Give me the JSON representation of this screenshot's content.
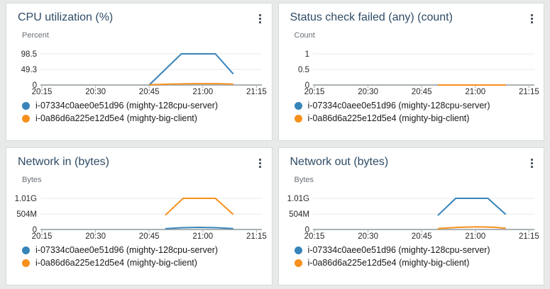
{
  "colors": {
    "blue": "#3784ba",
    "orange": "#f7901d",
    "title": "#2e4b66",
    "axis": "#aab2b5",
    "grid": "#e7eaea",
    "tick_text": "#25282a",
    "unit_text": "#687078",
    "legend_text": "#17191c",
    "page_bg": "#e8eaea",
    "panel_bg": "#ffffff",
    "panel_border": "#d5dada",
    "kebab_dot": "#545b64"
  },
  "menu": {
    "icon": "kebab-vertical"
  },
  "chart_data": [
    {
      "type": "line",
      "title": "CPU utilization (%)",
      "ylabel": "Percent",
      "x_tick_labels": [
        "20:15",
        "20:30",
        "20:45",
        "21:00",
        "21:15"
      ],
      "x_tick_minutes": [
        0,
        15,
        30,
        45,
        60
      ],
      "x_range_minutes": [
        0,
        61.5
      ],
      "y_ticks": [
        {
          "value": 0,
          "label": "0"
        },
        {
          "value": 49.3,
          "label": "49.3"
        },
        {
          "value": 98.5,
          "label": "98.5"
        }
      ],
      "y_max": 121,
      "series": [
        {
          "name": "i-07334c0aee0e51d96 (mighty-128cpu-server)",
          "color": "#3784ba",
          "points_x_minutes": [
            30,
            39,
            48.5,
            53.5
          ],
          "points_y": [
            0,
            98.5,
            98.5,
            35
          ]
        },
        {
          "name": "i-0a86d6a225e12d5e4 (mighty-big-client)",
          "color": "#f7901d",
          "points_x_minutes": [
            30,
            36,
            43,
            49,
            53.5
          ],
          "points_y": [
            0.8,
            2.6,
            4.2,
            4.2,
            2.6
          ]
        }
      ]
    },
    {
      "type": "line",
      "title": "Status check failed (any) (count)",
      "ylabel": "Count",
      "x_tick_labels": [
        "20:15",
        "20:30",
        "20:45",
        "21:00",
        "21:15"
      ],
      "x_tick_minutes": [
        0,
        15,
        30,
        45,
        60
      ],
      "x_range_minutes": [
        0,
        61.5
      ],
      "y_ticks": [
        {
          "value": 0,
          "label": "0"
        },
        {
          "value": 0.5,
          "label": "0.5"
        },
        {
          "value": 1,
          "label": "1"
        }
      ],
      "y_max": 1.23,
      "series": [
        {
          "name": "i-07334c0aee0e51d96 (mighty-128cpu-server)",
          "color": "#3784ba",
          "points_x_minutes": [
            34.5,
            53.5
          ],
          "points_y": [
            0,
            0
          ]
        },
        {
          "name": "i-0a86d6a225e12d5e4 (mighty-big-client)",
          "color": "#f7901d",
          "points_x_minutes": [
            34.5,
            53.5
          ],
          "points_y": [
            0,
            0
          ]
        }
      ]
    },
    {
      "type": "line",
      "title": "Network in (bytes)",
      "ylabel": "Bytes",
      "x_tick_labels": [
        "20:15",
        "20:30",
        "20:45",
        "21:00",
        "21:15"
      ],
      "x_tick_minutes": [
        0,
        15,
        30,
        45,
        60
      ],
      "x_range_minutes": [
        0,
        61.5
      ],
      "y_ticks": [
        {
          "value": 0,
          "label": "0"
        },
        {
          "value": 504,
          "label": "504M"
        },
        {
          "value": 1010,
          "label": "1.01G"
        }
      ],
      "y_max": 1240,
      "series": [
        {
          "name": "i-07334c0aee0e51d96 (mighty-128cpu-server)",
          "color": "#3784ba",
          "points_x_minutes": [
            34.5,
            39,
            44,
            49,
            53.5
          ],
          "points_y": [
            25,
            58,
            68,
            58,
            30
          ]
        },
        {
          "name": "i-0a86d6a225e12d5e4 (mighty-big-client)",
          "color": "#f7901d",
          "points_x_minutes": [
            34.5,
            39.5,
            48.5,
            53.5
          ],
          "points_y": [
            465,
            1010,
            1010,
            490
          ]
        }
      ]
    },
    {
      "type": "line",
      "title": "Network out (bytes)",
      "ylabel": "Bytes",
      "x_tick_labels": [
        "20:15",
        "20:30",
        "20:45",
        "21:00",
        "21:15"
      ],
      "x_tick_minutes": [
        0,
        15,
        30,
        45,
        60
      ],
      "x_range_minutes": [
        0,
        61.5
      ],
      "y_ticks": [
        {
          "value": 0,
          "label": "0"
        },
        {
          "value": 504,
          "label": "504M"
        },
        {
          "value": 1010,
          "label": "1.01G"
        }
      ],
      "y_max": 1240,
      "series": [
        {
          "name": "i-07334c0aee0e51d96 (mighty-128cpu-server)",
          "color": "#3784ba",
          "points_x_minutes": [
            34.5,
            39.5,
            48.5,
            53.5
          ],
          "points_y": [
            455,
            1010,
            1010,
            490
          ]
        },
        {
          "name": "i-0a86d6a225e12d5e4 (mighty-big-client)",
          "color": "#f7901d",
          "points_x_minutes": [
            34.5,
            40,
            45.5,
            50,
            53.5
          ],
          "points_y": [
            30,
            70,
            85,
            75,
            40
          ]
        }
      ]
    }
  ]
}
